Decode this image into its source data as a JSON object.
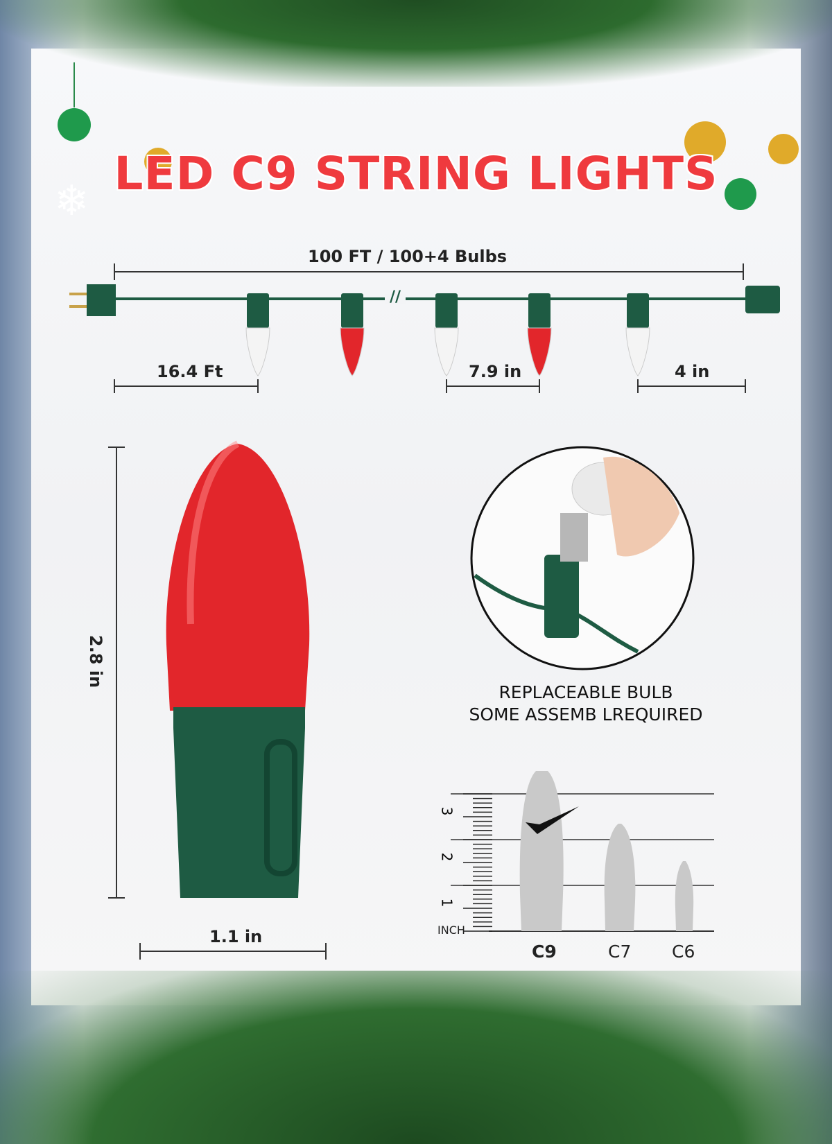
{
  "title": "LED C9 STRING LIGHTS",
  "string": {
    "total_label": "100 FT / 100+4 Bulbs",
    "lead_label": "16.4 Ft",
    "spacing_label": "7.9 in",
    "end_label": "4 in",
    "break_mark": "//",
    "bulb_colors": [
      "white",
      "red",
      "white",
      "red",
      "white"
    ]
  },
  "bulb": {
    "height_label": "2.8 in",
    "width_label": "1.1 in"
  },
  "feature": {
    "line1": "REPLACEABLE BULB",
    "line2": "SOME ASSEMB LREQUIRED"
  },
  "size_chart": {
    "ruler_unit": "INCH",
    "ruler_ticks": [
      "1",
      "2",
      "3"
    ],
    "bulbs": [
      "C9",
      "C7",
      "C6"
    ],
    "selected": "C9"
  },
  "colors": {
    "title_red": "#ef3a3e",
    "socket_green": "#1e5b43",
    "bulb_red": "#e2262b"
  }
}
